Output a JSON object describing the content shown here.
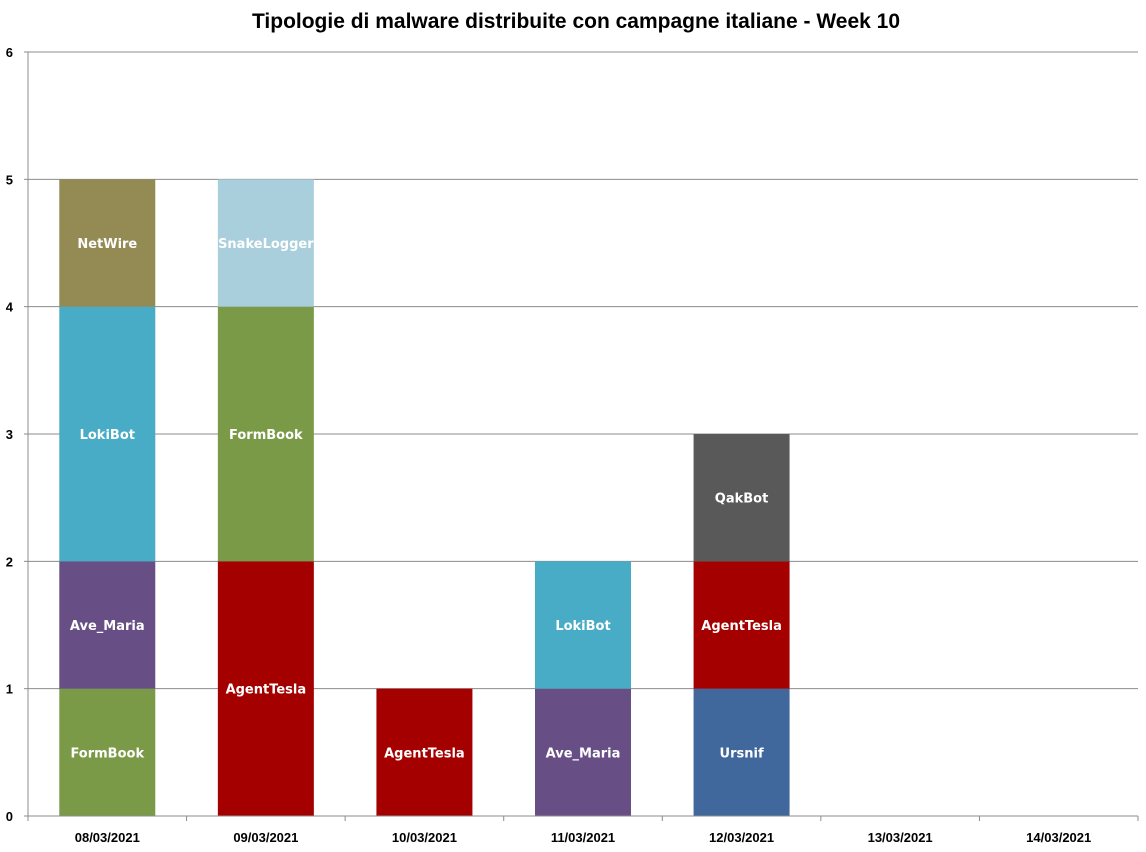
{
  "chart_data": {
    "type": "bar",
    "stacked": true,
    "title": "Tipologie di malware distribuite con campagne italiane - Week 10",
    "xlabel": "",
    "ylabel": "",
    "ylim": [
      0,
      6
    ],
    "yticks": [
      "0",
      "1",
      "2",
      "3",
      "4",
      "5",
      "6"
    ],
    "grid": true,
    "legend": "none",
    "categories": [
      "08/03/2021",
      "09/03/2021",
      "10/03/2021",
      "11/03/2021",
      "12/03/2021",
      "13/03/2021",
      "14/03/2021"
    ],
    "stacks": [
      [
        {
          "label": "FormBook",
          "value": 1,
          "color": "#7B9A48"
        },
        {
          "label": "Ave_Maria",
          "value": 1,
          "color": "#674F86"
        },
        {
          "label": "LokiBot",
          "value": 2,
          "color": "#49ACC6"
        },
        {
          "label": "NetWire",
          "value": 1,
          "color": "#948A54"
        }
      ],
      [
        {
          "label": "AgentTesla",
          "value": 2,
          "color": "#A50000"
        },
        {
          "label": "FormBook",
          "value": 2,
          "color": "#7B9A48"
        },
        {
          "label": "SnakeLogger",
          "value": 1,
          "color": "#A9CFDC"
        }
      ],
      [
        {
          "label": "AgentTesla",
          "value": 1,
          "color": "#A50000"
        }
      ],
      [
        {
          "label": "Ave_Maria",
          "value": 1,
          "color": "#674F86"
        },
        {
          "label": "LokiBot",
          "value": 1,
          "color": "#49ACC6"
        }
      ],
      [
        {
          "label": "Ursnif",
          "value": 1,
          "color": "#41689C"
        },
        {
          "label": "AgentTesla",
          "value": 1,
          "color": "#A50000"
        },
        {
          "label": "QakBot",
          "value": 1,
          "color": "#595959"
        }
      ],
      [],
      []
    ]
  }
}
